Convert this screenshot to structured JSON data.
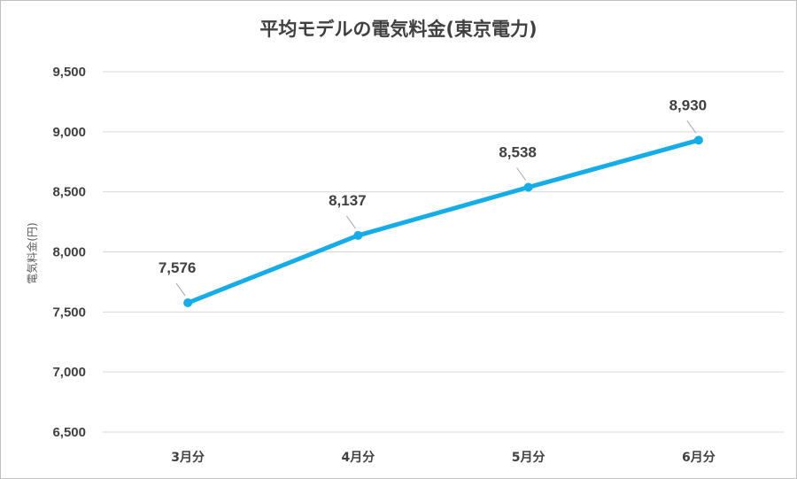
{
  "chart_data": {
    "type": "line",
    "title": "平均モデルの電気料金(東京電力)",
    "ylabel": "電気料金(円)",
    "xlabel": "",
    "categories": [
      "3月分",
      "4月分",
      "5月分",
      "6月分"
    ],
    "series": [
      {
        "values": [
          7576,
          8137,
          8538,
          8930
        ]
      }
    ],
    "data_labels": [
      "7,576",
      "8,137",
      "8,538",
      "8,930"
    ],
    "y_ticks": [
      "6,500",
      "7,000",
      "7,500",
      "8,000",
      "8,500",
      "9,000",
      "9,500"
    ],
    "ylim": [
      6500,
      9500
    ],
    "grid": true,
    "legend": "none",
    "colors": {
      "line": "#16ace8",
      "label": "#404040",
      "highlight_label": "#ff0000",
      "grid": "#d9d9d9"
    }
  }
}
